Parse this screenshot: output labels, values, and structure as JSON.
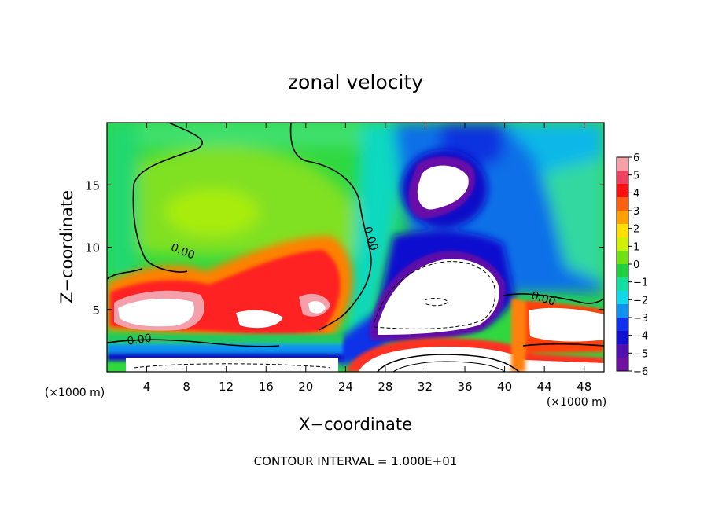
{
  "chart_data": {
    "type": "heatmap",
    "title": "zonal velocity",
    "xlabel": "X−coordinate",
    "ylabel": "Z−coordinate",
    "x_unit_left": "(×1000 m)",
    "x_unit_right": "(×1000 m)",
    "footer": "CONTOUR INTERVAL = 1.000E+01",
    "xlim": [
      0,
      50
    ],
    "ylim": [
      0,
      20
    ],
    "x_ticks": [
      4,
      8,
      12,
      16,
      20,
      24,
      28,
      32,
      36,
      40,
      44,
      48
    ],
    "x_tick_labels": [
      "4",
      "8",
      "12",
      "16",
      "20",
      "24",
      "28",
      "32",
      "36",
      "40",
      "44",
      "48"
    ],
    "y_ticks": [
      5,
      10,
      15
    ],
    "y_tick_labels": [
      "5",
      "10",
      "15"
    ],
    "colorbar": {
      "min": -6,
      "max": 6,
      "ticks": [
        6,
        5,
        4,
        3,
        2,
        1,
        0,
        -1,
        -2,
        -3,
        -4,
        -5,
        -6
      ],
      "tick_labels": [
        "6",
        "5",
        "4",
        "3",
        "2",
        "1",
        "0",
        "−1",
        "−2",
        "−3",
        "−4",
        "−5",
        "−6"
      ],
      "colors": [
        "#f7a0a8",
        "#f04060",
        "#ff1010",
        "#ff6010",
        "#ffa000",
        "#ffe000",
        "#d0f000",
        "#70e010",
        "#20d040",
        "#10e0a0",
        "#10d8e8",
        "#1090f0",
        "#1030f0",
        "#1010d0",
        "#5010b0",
        "#7010a0"
      ]
    },
    "contour_labels": [
      {
        "text": "0.00",
        "x": 7.5,
        "z": 9.4,
        "angle": 22
      },
      {
        "text": "0.00",
        "x": 26.2,
        "z": 10.6,
        "angle": 72
      },
      {
        "text": "0.00",
        "x": 43.8,
        "z": 5.6,
        "angle": 18
      },
      {
        "text": "0.00",
        "x": 3.3,
        "z": 2.3,
        "angle": -8
      }
    ]
  }
}
